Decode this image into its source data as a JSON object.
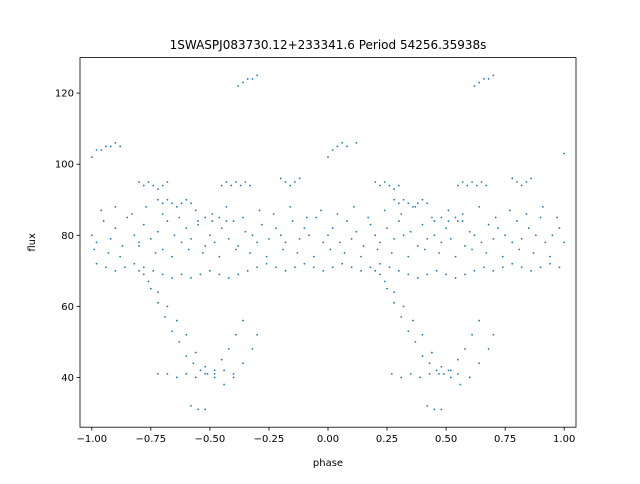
{
  "chart_data": {
    "type": "scatter",
    "title": "1SWASPJ083730.12+233341.6 Period 54256.35938s",
    "xlabel": "phase",
    "ylabel": "flux",
    "xlim": [
      -1.05,
      1.05
    ],
    "ylim": [
      26,
      130
    ],
    "xticks": [
      -1.0,
      -0.75,
      -0.5,
      -0.25,
      0.0,
      0.25,
      0.5,
      0.75,
      1.0
    ],
    "xtick_labels": [
      "−1.00",
      "−0.75",
      "−0.50",
      "−0.25",
      "0.00",
      "0.25",
      "0.50",
      "0.75",
      "1.00"
    ],
    "yticks": [
      40,
      60,
      80,
      100,
      120
    ],
    "ytick_labels": [
      "40",
      "60",
      "80",
      "100",
      "120"
    ],
    "grid": false,
    "legend": "none",
    "point_color": "#1f77b4",
    "series": [
      {
        "x": [
          -1.0,
          -0.98,
          -0.95,
          -0.92,
          -0.9,
          -0.87,
          -0.85,
          -0.82,
          -0.8,
          -0.78,
          -0.75,
          -0.72,
          -0.7,
          -0.68,
          -0.65,
          -0.62,
          -0.6,
          -0.58,
          -0.55,
          -0.52,
          -0.5,
          -0.48,
          -0.45,
          -0.42,
          -0.4,
          -0.38,
          -0.35,
          -0.32,
          -0.3,
          -0.28,
          -0.25,
          -0.22,
          -0.2,
          -0.18,
          -0.15,
          -0.12,
          -0.1,
          -0.08,
          -0.05,
          -0.02,
          0.0,
          0.02,
          0.05,
          0.08,
          0.1,
          0.12,
          0.15,
          0.18,
          0.2,
          0.22,
          0.25,
          0.28,
          0.3,
          0.32,
          0.35,
          0.38,
          0.4,
          0.42,
          0.45,
          0.48,
          0.5,
          0.52,
          0.55,
          0.58,
          0.6,
          0.62,
          0.65,
          0.68,
          0.7,
          0.72,
          0.75,
          0.78,
          0.8,
          0.82,
          0.85,
          0.88,
          0.9,
          0.92,
          0.95,
          0.98,
          1.0,
          -0.99,
          -0.96,
          -0.93,
          -0.9,
          -0.88,
          -0.83,
          -0.8,
          -0.77,
          -0.73,
          -0.7,
          -0.66,
          -0.63,
          -0.59,
          -0.56,
          -0.53,
          -0.49,
          -0.46,
          -0.43,
          -0.39,
          -0.36,
          -0.33,
          -0.29,
          -0.26,
          -0.23,
          -0.19,
          -0.16,
          -0.13,
          -0.09,
          -0.06,
          -0.03,
          0.01,
          0.04,
          0.07,
          0.11,
          0.14,
          0.17,
          0.21,
          0.24,
          0.27,
          0.31,
          0.34,
          0.37,
          0.41,
          0.44,
          0.47,
          0.51,
          0.54,
          0.57,
          0.61,
          0.64,
          0.67,
          0.71,
          0.74,
          0.77,
          0.81,
          0.84,
          0.87,
          0.91,
          0.94,
          0.97,
          -0.98,
          -0.94,
          -0.9,
          -0.86,
          -0.82,
          -0.78,
          -0.74,
          -0.7,
          -0.66,
          -0.62,
          -0.58,
          -0.54,
          -0.5,
          -0.46,
          -0.42,
          -0.38,
          -0.34,
          -0.3,
          -0.26,
          -0.22,
          -0.18,
          -0.14,
          -0.1,
          -0.06,
          -0.02,
          0.02,
          0.06,
          0.1,
          0.14,
          0.18,
          0.22,
          0.26,
          0.3,
          0.34,
          0.38,
          0.42,
          0.46,
          0.5,
          0.54,
          0.58,
          0.62,
          0.66,
          0.7,
          0.74,
          0.78,
          0.82,
          0.86,
          0.9,
          0.94,
          0.98,
          -0.8,
          -0.76,
          -0.72,
          -0.68,
          -0.64,
          -0.6,
          -0.56,
          -0.52,
          -0.48,
          -0.44,
          -0.4,
          -0.36,
          -0.32,
          -0.3,
          0.2,
          0.24,
          0.28,
          0.32,
          0.36,
          0.4,
          0.44,
          0.48,
          0.52,
          0.56,
          0.6,
          0.64,
          0.68,
          0.7,
          -0.78,
          -0.75,
          -0.72,
          -0.69,
          -0.66,
          -0.63,
          -0.6,
          -0.57,
          -0.54,
          -0.51,
          -0.48,
          -0.45,
          -0.42,
          -0.39,
          -0.36,
          0.22,
          0.25,
          0.28,
          0.31,
          0.34,
          0.37,
          0.4,
          0.43,
          0.46,
          0.49,
          0.52,
          0.55,
          0.58,
          0.61,
          0.64,
          -0.72,
          -0.7,
          -0.68,
          -0.66,
          -0.64,
          -0.62,
          -0.6,
          -0.58,
          0.28,
          0.3,
          0.32,
          0.34,
          0.36,
          0.38,
          0.4,
          0.42,
          -0.45,
          -0.43,
          -0.41,
          -0.39,
          -0.37,
          -0.35,
          -0.33,
          0.55,
          0.57,
          0.59,
          0.61,
          0.63,
          0.65,
          0.67,
          -0.72,
          -0.68,
          -0.64,
          -0.6,
          -0.56,
          -0.52,
          -0.48,
          -0.44,
          -0.4,
          0.27,
          0.31,
          0.35,
          0.39,
          0.43,
          0.47,
          0.51,
          0.55,
          0.6,
          -0.58,
          -0.55,
          -0.52,
          0.42,
          0.45,
          0.48,
          -1.0,
          -0.98,
          -0.96,
          -0.94,
          -0.92,
          -0.9,
          -0.88,
          0.0,
          0.02,
          0.04,
          0.06,
          0.08,
          0.12,
          1.0,
          -0.38,
          -0.36,
          -0.34,
          -0.32,
          -0.3,
          0.62,
          0.64,
          0.66,
          0.68,
          0.7,
          -0.8,
          -0.78,
          -0.76,
          -0.74,
          -0.72,
          -0.7,
          -0.68,
          0.2,
          0.22,
          0.24,
          0.26,
          0.28,
          0.3,
          -0.55,
          -0.52,
          -0.49,
          -0.46,
          -0.43,
          0.45,
          0.48,
          0.51,
          0.54,
          0.57,
          -0.2,
          -0.18,
          -0.16,
          -0.14,
          -0.12,
          0.78,
          0.8,
          0.82,
          0.84,
          0.86
        ],
        "y": [
          80,
          78,
          84,
          79,
          82,
          77,
          85,
          80,
          78,
          83,
          79,
          81,
          76,
          84,
          80,
          78,
          82,
          79,
          83,
          77,
          80,
          78,
          82,
          79,
          84,
          77,
          81,
          80,
          78,
          83,
          79,
          82,
          80,
          78,
          84,
          79,
          82,
          80,
          85,
          78,
          80,
          82,
          78,
          84,
          79,
          81,
          77,
          83,
          80,
          78,
          82,
          79,
          84,
          80,
          81,
          77,
          83,
          79,
          80,
          78,
          82,
          79,
          84,
          77,
          81,
          80,
          78,
          83,
          79,
          82,
          80,
          78,
          84,
          79,
          82,
          80,
          85,
          78,
          80,
          82,
          78,
          76,
          87,
          75,
          88,
          74,
          86,
          77,
          88,
          75,
          86,
          74,
          85,
          76,
          87,
          75,
          86,
          74,
          88,
          76,
          85,
          75,
          87,
          74,
          86,
          76,
          88,
          75,
          85,
          74,
          87,
          76,
          86,
          75,
          88,
          74,
          85,
          76,
          87,
          75,
          86,
          74,
          88,
          76,
          85,
          75,
          87,
          74,
          86,
          76,
          88,
          75,
          85,
          74,
          87,
          76,
          86,
          75,
          88,
          74,
          85,
          72,
          71,
          70,
          71,
          72,
          71,
          70,
          69,
          68,
          69,
          68,
          69,
          70,
          69,
          68,
          69,
          70,
          71,
          72,
          71,
          70,
          71,
          72,
          71,
          70,
          71,
          72,
          71,
          70,
          71,
          72,
          71,
          70,
          69,
          68,
          69,
          70,
          69,
          68,
          69,
          70,
          71,
          70,
          71,
          72,
          71,
          70,
          71,
          72,
          71,
          70,
          67,
          64,
          60,
          56,
          52,
          47,
          43,
          40,
          38,
          40,
          44,
          48,
          52,
          70,
          67,
          64,
          60,
          56,
          52,
          47,
          43,
          40,
          38,
          40,
          44,
          48,
          52,
          69,
          65,
          61,
          57,
          53,
          50,
          46,
          44,
          42,
          41,
          42,
          45,
          48,
          52,
          56,
          69,
          65,
          61,
          57,
          53,
          50,
          46,
          44,
          42,
          41,
          42,
          45,
          48,
          52,
          56,
          90,
          89,
          90,
          89,
          88,
          89,
          90,
          89,
          90,
          89,
          90,
          89,
          88,
          89,
          90,
          89,
          94,
          95,
          94,
          95,
          94,
          95,
          94,
          94,
          95,
          94,
          95,
          94,
          95,
          94,
          41,
          41,
          40,
          41,
          40,
          41,
          41,
          42,
          41,
          41,
          40,
          41,
          40,
          41,
          41,
          42,
          41,
          40,
          32,
          31,
          31,
          32,
          31,
          31,
          102,
          104,
          104,
          105,
          105,
          106,
          105,
          102,
          104,
          105,
          106,
          105,
          106,
          103,
          122,
          123,
          124,
          124,
          125,
          122,
          123,
          124,
          124,
          125,
          95,
          94,
          95,
          94,
          93,
          94,
          95,
          95,
          94,
          95,
          94,
          93,
          94,
          84,
          85,
          84,
          85,
          84,
          84,
          85,
          84,
          85,
          84,
          96,
          95,
          94,
          95,
          96,
          96,
          95,
          94,
          95,
          96
        ]
      }
    ]
  }
}
